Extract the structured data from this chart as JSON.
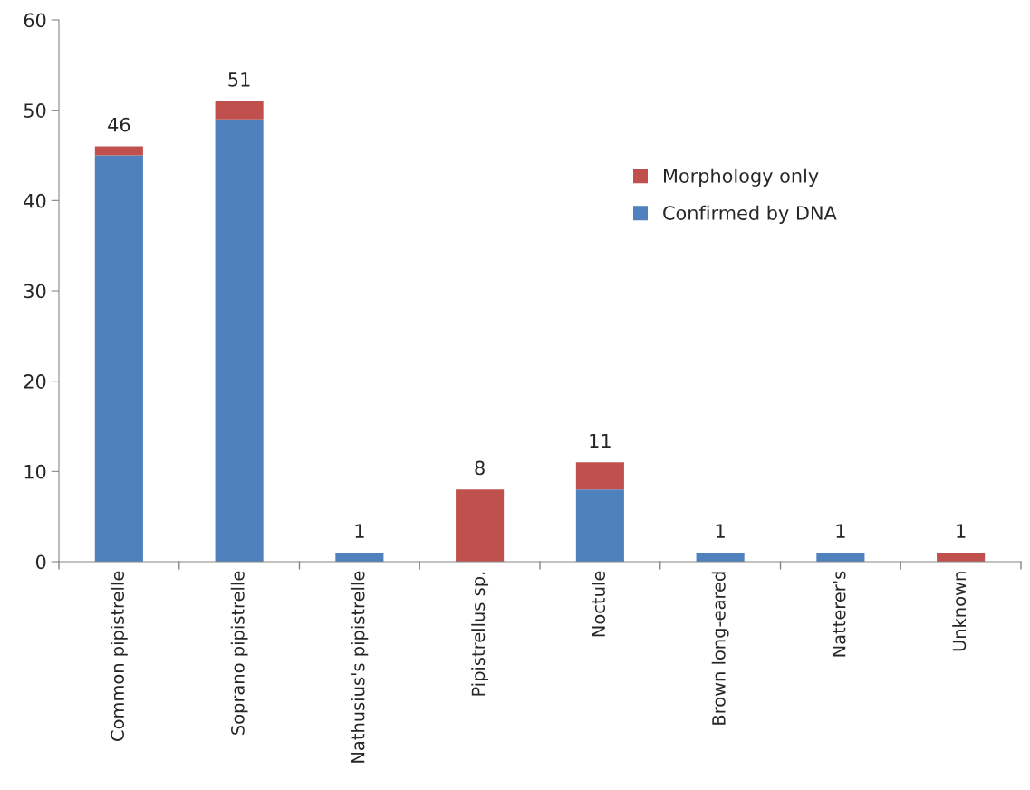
{
  "chart_data": {
    "type": "bar",
    "stacked": true,
    "categories": [
      "Common pipistrelle",
      "Soprano pipistrelle",
      "Nathusius's pipistrelle",
      "Pipistrellus sp.",
      "Noctule",
      "Brown long-eared",
      "Natterer's",
      "Unknown"
    ],
    "series": [
      {
        "name": "Confirmed by DNA",
        "color": "#4f81bd",
        "values": [
          45,
          49,
          1,
          0,
          8,
          1,
          1,
          0
        ]
      },
      {
        "name": "Morphology only",
        "color": "#c0504d",
        "values": [
          1,
          2,
          0,
          8,
          3,
          0,
          0,
          1
        ]
      }
    ],
    "totals": [
      "46",
      "51",
      "1",
      "8",
      "11",
      "1",
      "1",
      "1"
    ],
    "ylim": [
      0,
      60
    ],
    "yticks": [
      0,
      10,
      20,
      30,
      40,
      50,
      60
    ],
    "grid": false,
    "legend": "right"
  }
}
